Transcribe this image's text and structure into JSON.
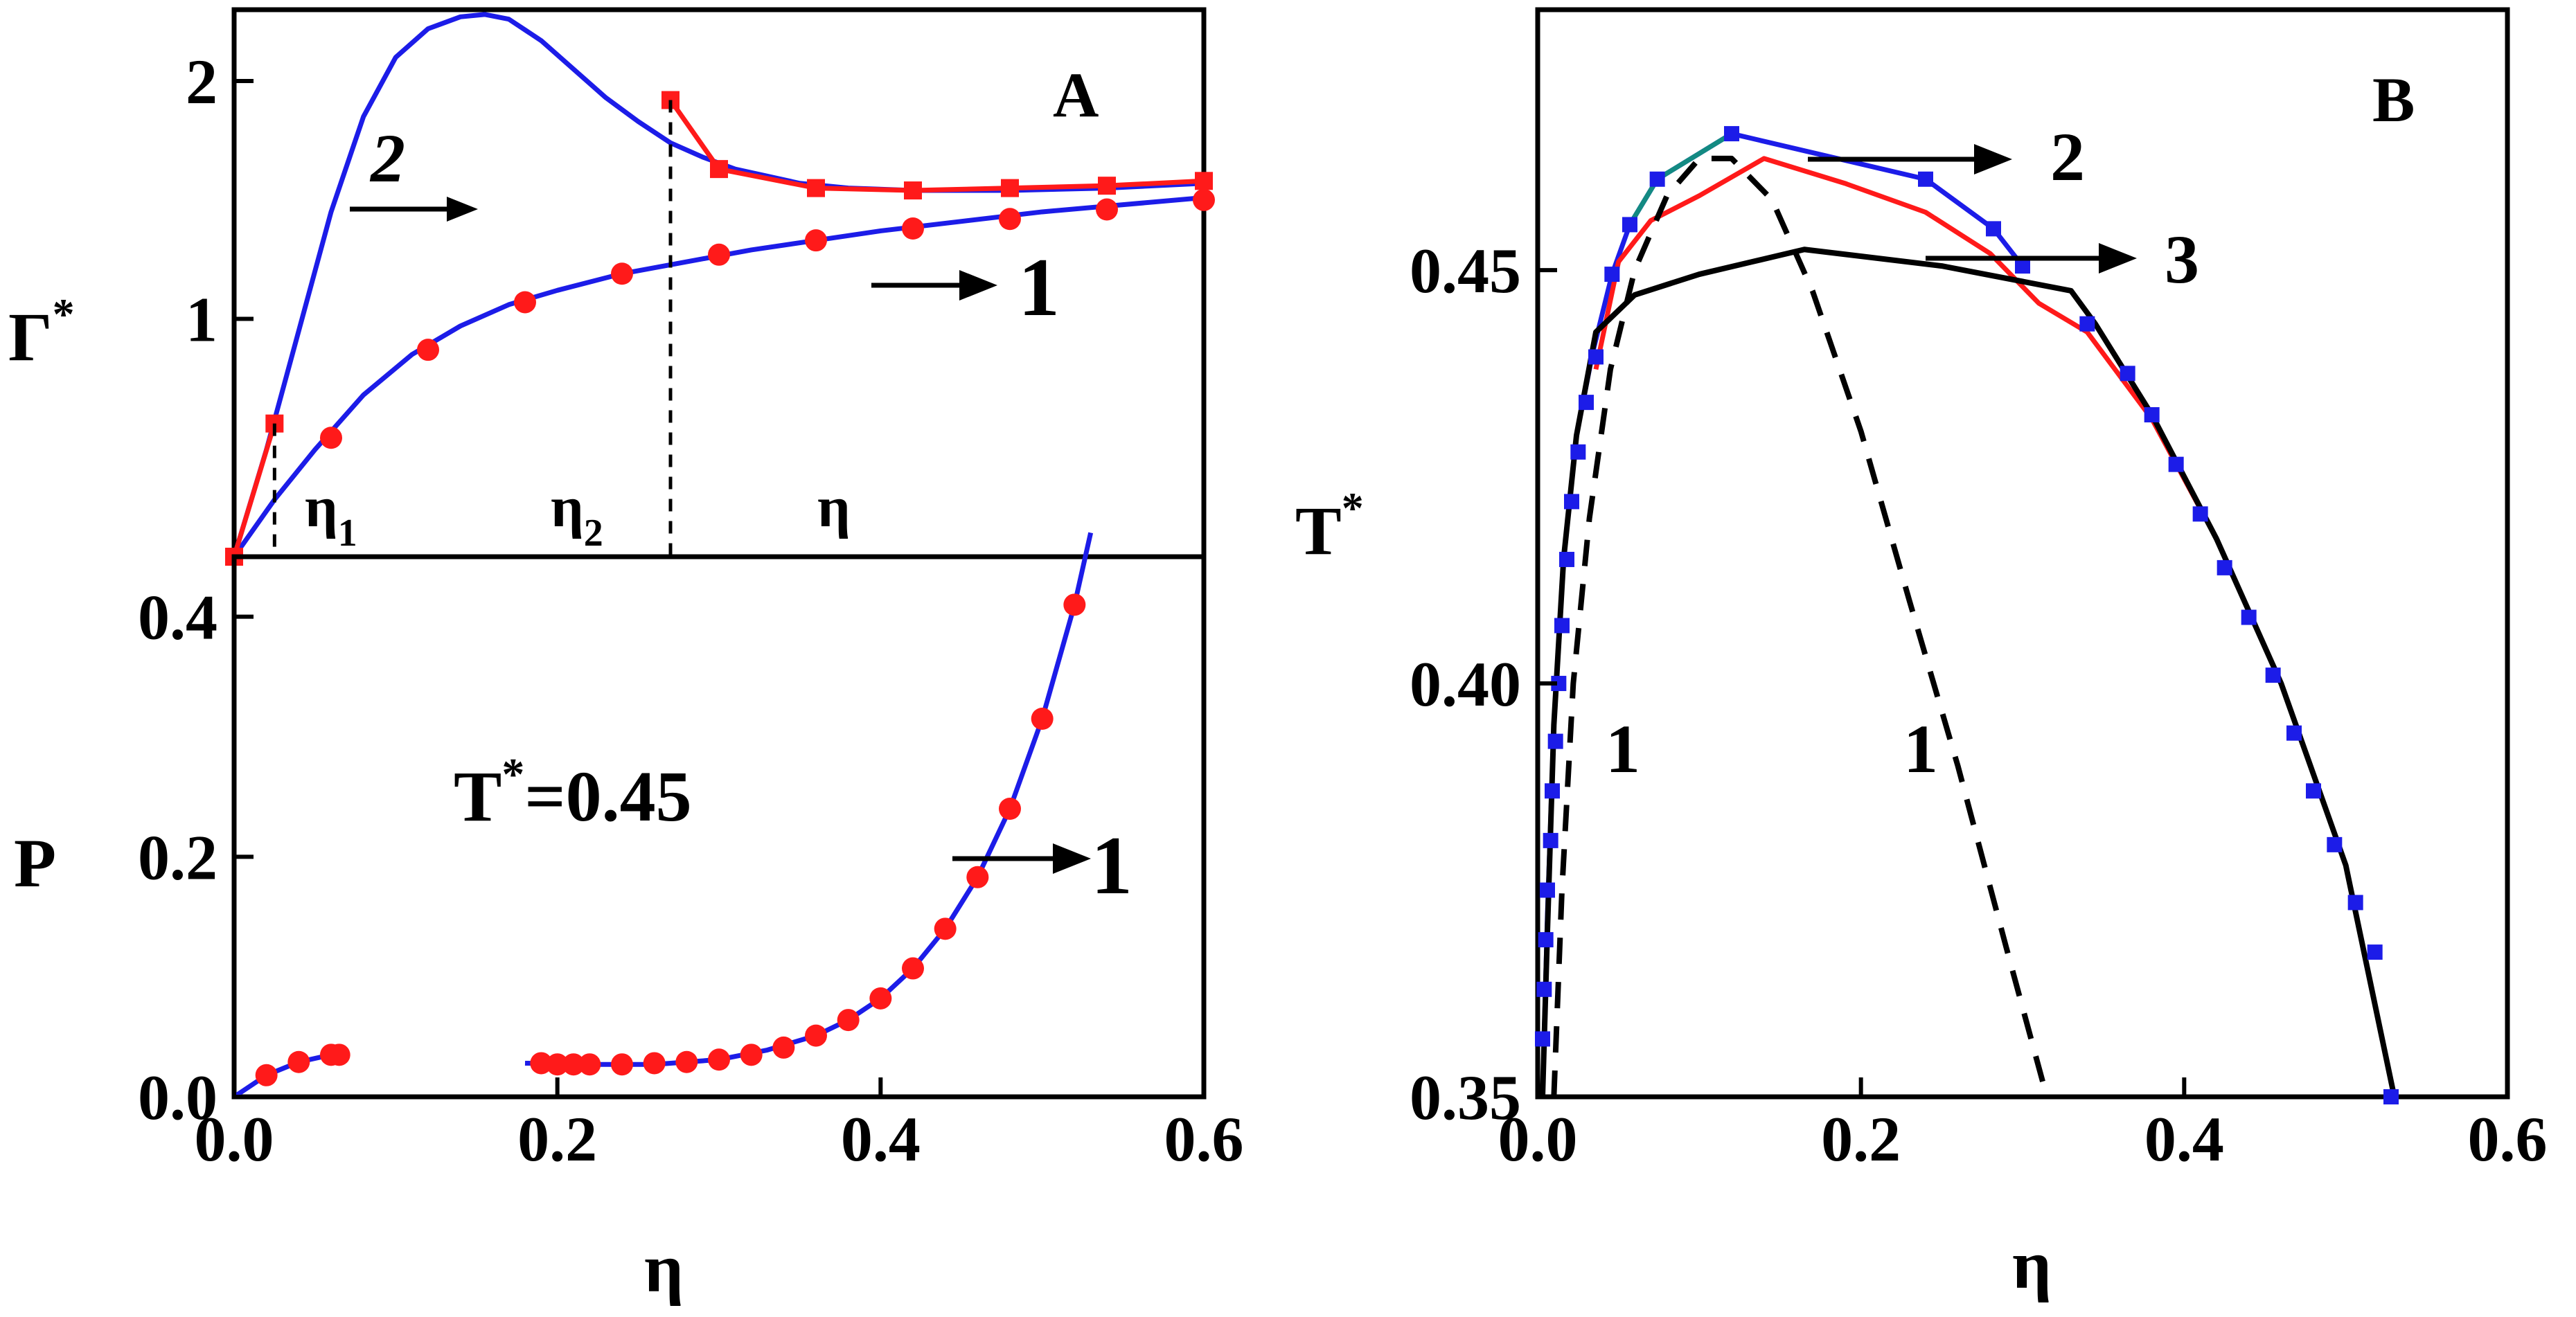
{
  "chart_data": [
    {
      "panel": "A (top)",
      "type": "line",
      "panel_label": "A",
      "ylabel": "Γ",
      "ylabel_sup": "*",
      "xlim": [
        0.0,
        0.6
      ],
      "ylim": [
        0.0,
        2.3
      ],
      "yticks": [
        {
          "value": 1,
          "label": "1"
        },
        {
          "value": 2,
          "label": "2"
        }
      ],
      "x_markers": [
        {
          "x": 0.025,
          "label": "η",
          "sub": "1"
        },
        {
          "x": 0.27,
          "label": "η",
          "sub": "2"
        }
      ],
      "axis_note": "η",
      "series": [
        {
          "name": "curve 2 (blue line)",
          "color": "#1c1ce8",
          "x": [
            0.0,
            0.02,
            0.04,
            0.06,
            0.08,
            0.1,
            0.12,
            0.14,
            0.155,
            0.17,
            0.19,
            0.21,
            0.23,
            0.25,
            0.27,
            0.29,
            0.31,
            0.33,
            0.35,
            0.38,
            0.42,
            0.48,
            0.54,
            0.6
          ],
          "y": [
            0.0,
            0.45,
            0.95,
            1.45,
            1.85,
            2.1,
            2.22,
            2.27,
            2.28,
            2.26,
            2.17,
            2.05,
            1.93,
            1.83,
            1.74,
            1.68,
            1.63,
            1.6,
            1.57,
            1.55,
            1.54,
            1.54,
            1.55,
            1.57
          ]
        },
        {
          "name": "curve 1 (blue line)",
          "color": "#1c1ce8",
          "x": [
            0.0,
            0.025,
            0.05,
            0.08,
            0.11,
            0.14,
            0.17,
            0.2,
            0.24,
            0.28,
            0.32,
            0.36,
            0.4,
            0.45,
            0.5,
            0.55,
            0.6
          ],
          "y": [
            0.0,
            0.24,
            0.45,
            0.68,
            0.85,
            0.97,
            1.06,
            1.12,
            1.19,
            1.24,
            1.29,
            1.33,
            1.37,
            1.41,
            1.45,
            1.48,
            1.51
          ]
        },
        {
          "name": "curve 1 data (red circles)",
          "color": "#ff1a1a",
          "marker": "circle",
          "x": [
            0.06,
            0.12,
            0.18,
            0.24,
            0.3,
            0.36,
            0.42,
            0.48,
            0.54,
            0.6
          ],
          "y": [
            0.5,
            0.87,
            1.07,
            1.19,
            1.27,
            1.33,
            1.38,
            1.42,
            1.46,
            1.5
          ]
        },
        {
          "name": "red line low-η branch",
          "color": "#ff1a1a",
          "marker": "square",
          "x": [
            0.0,
            0.025
          ],
          "y": [
            0.0,
            0.56
          ]
        },
        {
          "name": "red line high-η branch",
          "color": "#ff1a1a",
          "marker": "square",
          "x": [
            0.27,
            0.3,
            0.36,
            0.42,
            0.48,
            0.54,
            0.6
          ],
          "y": [
            1.92,
            1.63,
            1.55,
            1.54,
            1.55,
            1.56,
            1.58
          ]
        }
      ],
      "annotations": [
        {
          "text": "2",
          "arrow": true
        },
        {
          "text": "1",
          "arrow": true
        }
      ]
    },
    {
      "panel": "A (bottom)",
      "type": "line",
      "xlabel": "η",
      "ylabel": "P",
      "xlim": [
        0.0,
        0.6
      ],
      "ylim": [
        0.0,
        0.45
      ],
      "xticks": [
        {
          "value": 0.0,
          "label": "0.0"
        },
        {
          "value": 0.2,
          "label": "0.2"
        },
        {
          "value": 0.4,
          "label": "0.4"
        },
        {
          "value": 0.6,
          "label": "0.6"
        }
      ],
      "yticks": [
        {
          "value": 0.0,
          "label": "0.0"
        },
        {
          "value": 0.2,
          "label": "0.2"
        },
        {
          "value": 0.4,
          "label": "0.4"
        }
      ],
      "temperature_label": "T",
      "temperature_label_sup": "*",
      "temperature_value": "=0.45",
      "series": [
        {
          "name": "low-density branch (blue line)",
          "color": "#1c1ce8",
          "x": [
            0.0,
            0.02,
            0.04,
            0.06,
            0.068
          ],
          "y": [
            0.0,
            0.018,
            0.029,
            0.035,
            0.036
          ]
        },
        {
          "name": "high-density branch (blue line)",
          "color": "#1c1ce8",
          "x": [
            0.18,
            0.22,
            0.26,
            0.3,
            0.33,
            0.36,
            0.38,
            0.4,
            0.42,
            0.44,
            0.46,
            0.48,
            0.5,
            0.52,
            0.53
          ],
          "y": [
            0.028,
            0.027,
            0.027,
            0.031,
            0.039,
            0.051,
            0.064,
            0.082,
            0.107,
            0.14,
            0.183,
            0.24,
            0.315,
            0.41,
            0.47
          ]
        },
        {
          "name": "data (red circles)",
          "color": "#ff1a1a",
          "marker": "circle",
          "x": [
            0.02,
            0.04,
            0.06,
            0.065,
            0.19,
            0.2,
            0.21,
            0.22,
            0.24,
            0.26,
            0.28,
            0.3,
            0.32,
            0.34,
            0.36,
            0.38,
            0.4,
            0.42,
            0.44,
            0.46,
            0.48,
            0.5,
            0.52
          ],
          "y": [
            0.018,
            0.029,
            0.035,
            0.035,
            0.028,
            0.027,
            0.027,
            0.027,
            0.027,
            0.028,
            0.029,
            0.031,
            0.035,
            0.041,
            0.051,
            0.064,
            0.082,
            0.107,
            0.14,
            0.183,
            0.24,
            0.315,
            0.41
          ]
        }
      ],
      "annotations": [
        {
          "text": "1",
          "arrow": true
        }
      ]
    },
    {
      "panel": "B",
      "type": "line",
      "panel_label": "B",
      "xlabel": "η",
      "ylabel": "T",
      "ylabel_sup": "*",
      "xlim": [
        0.0,
        0.6
      ],
      "ylim": [
        0.35,
        0.4815
      ],
      "xticks": [
        {
          "value": 0.0,
          "label": "0.0"
        },
        {
          "value": 0.2,
          "label": "0.2"
        },
        {
          "value": 0.4,
          "label": "0.4"
        },
        {
          "value": 0.6,
          "label": "0.6"
        }
      ],
      "yticks": [
        {
          "value": 0.35,
          "label": "0.35"
        },
        {
          "value": 0.4,
          "label": "0.40"
        },
        {
          "value": 0.45,
          "label": "0.45"
        }
      ],
      "series": [
        {
          "name": "blue squares",
          "color": "#1c1ce8",
          "marker": "square",
          "x": [
            0.003,
            0.004,
            0.005,
            0.006,
            0.008,
            0.009,
            0.011,
            0.013,
            0.015,
            0.018,
            0.021,
            0.025,
            0.03,
            0.036,
            0.046,
            0.057,
            0.074,
            0.12,
            0.24,
            0.282,
            0.3,
            0.34,
            0.365,
            0.38,
            0.395,
            0.41,
            0.425,
            0.44,
            0.455,
            0.468,
            0.48,
            0.493,
            0.506,
            0.518,
            0.528
          ],
          "y": [
            0.357,
            0.363,
            0.369,
            0.375,
            0.381,
            0.387,
            0.393,
            0.4,
            0.407,
            0.415,
            0.422,
            0.428,
            0.434,
            0.4395,
            0.4495,
            0.4555,
            0.461,
            0.4665,
            0.461,
            0.455,
            0.4505,
            0.4435,
            0.4375,
            0.4325,
            0.4265,
            0.4205,
            0.414,
            0.408,
            0.401,
            0.394,
            0.387,
            0.3805,
            0.3735,
            0.3675,
            0.35
          ]
        },
        {
          "name": "blue/teal line",
          "color": "#1c1ce8",
          "x": [
            0.003,
            0.006,
            0.01,
            0.016,
            0.024,
            0.034,
            0.046,
            0.057,
            0.074,
            0.12,
            0.24,
            0.282,
            0.3
          ],
          "y": [
            0.35,
            0.372,
            0.395,
            0.415,
            0.43,
            0.44,
            0.4495,
            0.4555,
            0.461,
            0.4665,
            0.461,
            0.455,
            0.4505
          ]
        },
        {
          "name": "red line",
          "color": "#ff1a1a",
          "x": [
            0.036,
            0.05,
            0.07,
            0.1,
            0.14,
            0.19,
            0.24,
            0.28,
            0.31,
            0.34,
            0.38,
            0.42,
            0.46,
            0.5,
            0.53
          ],
          "y": [
            0.438,
            0.451,
            0.456,
            0.459,
            0.4635,
            0.4605,
            0.457,
            0.452,
            0.446,
            0.4425,
            0.432,
            0.4175,
            0.4,
            0.378,
            0.35
          ]
        },
        {
          "name": "curve 3 (black line)",
          "color": "#000000",
          "x": [
            0.003,
            0.006,
            0.01,
            0.016,
            0.024,
            0.036,
            0.06,
            0.1,
            0.165,
            0.25,
            0.33,
            0.345,
            0.38,
            0.42,
            0.46,
            0.5,
            0.53
          ],
          "y": [
            0.35,
            0.37,
            0.395,
            0.415,
            0.43,
            0.4425,
            0.447,
            0.4495,
            0.4525,
            0.4505,
            0.4475,
            0.4435,
            0.4325,
            0.4175,
            0.4,
            0.378,
            0.35
          ]
        },
        {
          "name": "curve 1 (black dashed)",
          "color": "#000000",
          "dashed": true,
          "x": [
            0.01,
            0.015,
            0.022,
            0.032,
            0.045,
            0.06,
            0.08,
            0.1,
            0.12,
            0.145,
            0.17,
            0.2,
            0.23,
            0.26,
            0.29,
            0.315
          ],
          "y": [
            0.35,
            0.375,
            0.4,
            0.42,
            0.438,
            0.45,
            0.459,
            0.4635,
            0.4635,
            0.4585,
            0.4475,
            0.4305,
            0.41,
            0.39,
            0.368,
            0.35
          ]
        }
      ],
      "annotations": [
        {
          "text": "1"
        },
        {
          "text": "1"
        },
        {
          "text": "2",
          "arrow": true
        },
        {
          "text": "3",
          "arrow": true
        }
      ]
    }
  ]
}
